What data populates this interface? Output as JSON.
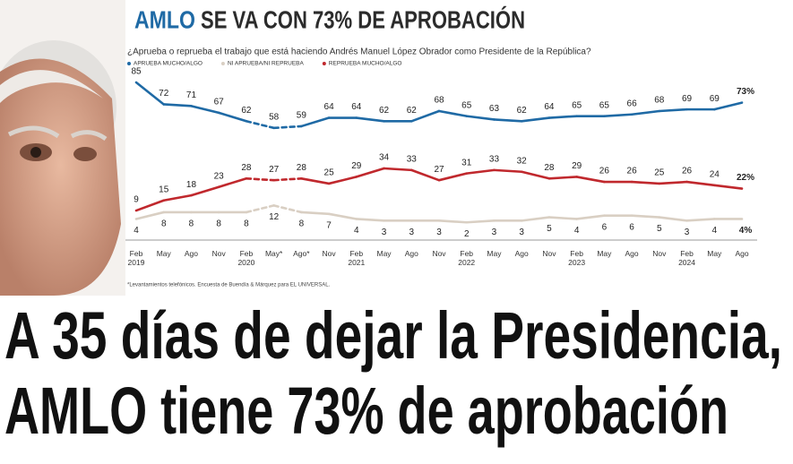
{
  "chart_data": {
    "type": "line",
    "title_highlight": "AMLO",
    "title": "SE VA CON 73% DE APROBACIÓN",
    "subtitle": "¿Aprueba o reprueba el trabajo que está haciendo Andrés Manuel López Obrador como Presidente de la República?",
    "categories": [
      "Feb 2019",
      "May",
      "Ago",
      "Nov",
      "Feb 2020",
      "May*",
      "Ago*",
      "Nov",
      "Feb 2021",
      "May",
      "Ago",
      "Nov",
      "Feb 2022",
      "May",
      "Ago",
      "Nov",
      "Feb 2023",
      "May",
      "Ago",
      "Nov",
      "Feb 2024",
      "May",
      "Ago"
    ],
    "series": [
      {
        "name": "APRUEBA MUCHO/ALGO",
        "color": "#1f6aa5",
        "values": [
          85,
          72,
          71,
          67,
          62,
          58,
          59,
          64,
          64,
          62,
          62,
          68,
          65,
          63,
          62,
          64,
          65,
          65,
          66,
          68,
          69,
          69,
          73
        ],
        "value_labels": [
          "85",
          "72",
          "71",
          "67",
          "62",
          "58",
          "59",
          "64",
          "64",
          "62",
          "62",
          "68",
          "65",
          "63",
          "62",
          "64",
          "65",
          "65",
          "66",
          "68",
          "69",
          "69",
          "73%"
        ]
      },
      {
        "name": "NI APRUEBA/NI REPRUEBA",
        "color": "#d9cfc3",
        "values": [
          4,
          8,
          8,
          8,
          8,
          12,
          8,
          7,
          4,
          3,
          3,
          3,
          2,
          3,
          3,
          5,
          4,
          6,
          6,
          5,
          3,
          4,
          4
        ],
        "value_labels": [
          "4",
          "8",
          "8",
          "8",
          "8",
          "12",
          "8",
          "7",
          "4",
          "3",
          "3",
          "3",
          "2",
          "3",
          "3",
          "5",
          "4",
          "6",
          "6",
          "5",
          "3",
          "4",
          "4%"
        ]
      },
      {
        "name": "REPRUEBA MUCHO/ALGO",
        "color": "#c0282d",
        "values": [
          9,
          15,
          18,
          23,
          28,
          27,
          28,
          25,
          29,
          34,
          33,
          27,
          31,
          33,
          32,
          28,
          29,
          26,
          26,
          25,
          26,
          24,
          22
        ],
        "value_labels": [
          "9",
          "15",
          "18",
          "23",
          "28",
          "27",
          "28",
          "25",
          "29",
          "34",
          "33",
          "27",
          "31",
          "33",
          "32",
          "28",
          "29",
          "26",
          "26",
          "25",
          "26",
          "24",
          "22%"
        ]
      }
    ],
    "source": "*Levantamientos telefónicos. Encuesta de Buendía & Márquez para EL UNIVERSAL."
  },
  "headline": [
    "A 35 días de dejar la Presidencia,",
    "AMLO tiene 73% de aprobación"
  ]
}
